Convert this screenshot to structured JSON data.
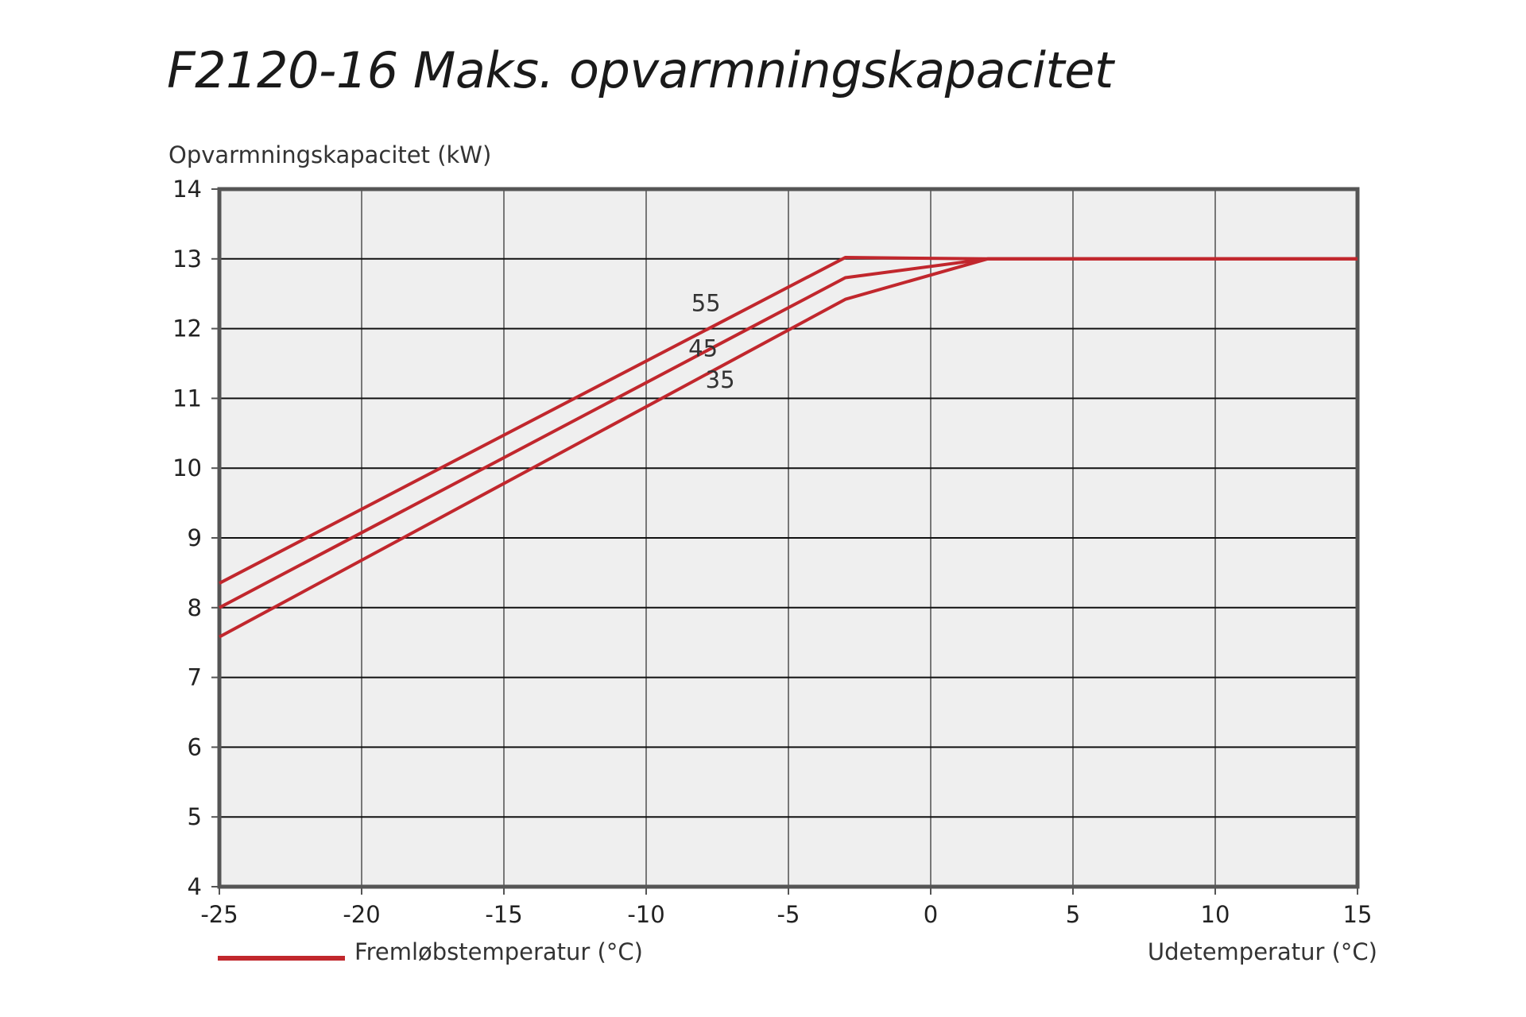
{
  "chart_data": {
    "type": "line",
    "title": "F2120-16 Maks. opvarmningskapacitet",
    "ylabel": "Opvarmningskapacitet (kW)",
    "xlabel": "Udetemperatur (°C)",
    "legend_label": "Fremløbstemperatur (°C)",
    "legend_color": "#c1272d",
    "line_color": "#c1272d",
    "plot_background": "#efefef",
    "grid": true,
    "xlim": [
      -25,
      15
    ],
    "ylim": [
      4,
      14
    ],
    "x_ticks": [
      -25,
      -20,
      -15,
      -10,
      -5,
      0,
      5,
      10,
      15
    ],
    "y_ticks": [
      4,
      5,
      6,
      7,
      8,
      9,
      10,
      11,
      12,
      13,
      14
    ],
    "series": [
      {
        "name": "55",
        "label_pos": {
          "x": -7.9,
          "y": 12.25
        },
        "points": [
          [
            -25,
            8.35
          ],
          [
            -3,
            13.02
          ],
          [
            2,
            13.0
          ],
          [
            15,
            13.0
          ]
        ]
      },
      {
        "name": "45",
        "label_pos": {
          "x": -8.0,
          "y": 11.6
        },
        "points": [
          [
            -25,
            8.0
          ],
          [
            -3,
            12.73
          ],
          [
            2,
            13.0
          ],
          [
            15,
            13.0
          ]
        ]
      },
      {
        "name": "35",
        "label_pos": {
          "x": -7.4,
          "y": 11.15
        },
        "points": [
          [
            -25,
            7.58
          ],
          [
            -3,
            12.42
          ],
          [
            2,
            13.0
          ],
          [
            15,
            13.0
          ]
        ]
      }
    ]
  }
}
